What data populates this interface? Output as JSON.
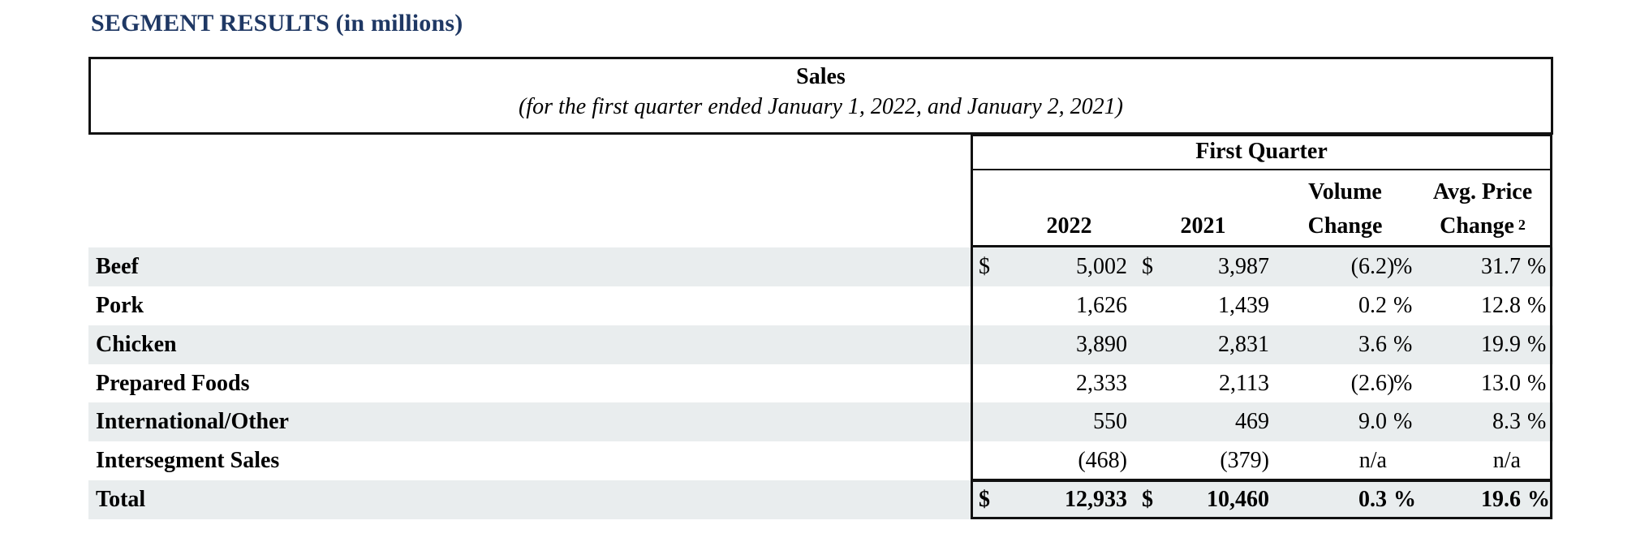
{
  "title": "SEGMENT RESULTS (in millions)",
  "colors": {
    "title_navy": "#1f3864",
    "stripe_gray": "#e9edee",
    "border_black": "#111111"
  },
  "table": {
    "header": {
      "title": "Sales",
      "subtitle": "(for the first quarter ended January 1, 2022, and January 2, 2021)",
      "group": "First Quarter",
      "col_2022": "2022",
      "col_2021": "2021",
      "vol_line1": "Volume",
      "vol_line2": "Change",
      "avg_line1": "Avg. Price",
      "avg_line2": "Change",
      "avg_footnote": "2"
    },
    "rows": [
      {
        "label": "Beef",
        "y2022": {
          "cur": "$",
          "num": "5,002"
        },
        "y2021": {
          "cur": "$",
          "num": "3,987"
        },
        "vol": {
          "num": "(6.2",
          "paren": ")",
          "unit": "%"
        },
        "avg": {
          "num": "31.7",
          "paren": "",
          "unit": "%"
        }
      },
      {
        "label": "Pork",
        "y2022": {
          "cur": "",
          "num": "1,626"
        },
        "y2021": {
          "cur": "",
          "num": "1,439"
        },
        "vol": {
          "num": "0.2",
          "paren": "",
          "unit": "%"
        },
        "avg": {
          "num": "12.8",
          "paren": "",
          "unit": "%"
        }
      },
      {
        "label": "Chicken",
        "y2022": {
          "cur": "",
          "num": "3,890"
        },
        "y2021": {
          "cur": "",
          "num": "2,831"
        },
        "vol": {
          "num": "3.6",
          "paren": "",
          "unit": "%"
        },
        "avg": {
          "num": "19.9",
          "paren": "",
          "unit": "%"
        }
      },
      {
        "label": "Prepared Foods",
        "y2022": {
          "cur": "",
          "num": "2,333"
        },
        "y2021": {
          "cur": "",
          "num": "2,113"
        },
        "vol": {
          "num": "(2.6",
          "paren": ")",
          "unit": "%"
        },
        "avg": {
          "num": "13.0",
          "paren": "",
          "unit": "%"
        }
      },
      {
        "label": "International/Other",
        "y2022": {
          "cur": "",
          "num": "550"
        },
        "y2021": {
          "cur": "",
          "num": "469"
        },
        "vol": {
          "num": "9.0",
          "paren": "",
          "unit": "%"
        },
        "avg": {
          "num": "8.3",
          "paren": "",
          "unit": "%"
        }
      },
      {
        "label": "Intersegment Sales",
        "y2022": {
          "cur": "",
          "num": "(468)"
        },
        "y2021": {
          "cur": "",
          "num": "(379)"
        },
        "vol": {
          "num": "n/a",
          "paren": "",
          "unit": ""
        },
        "avg": {
          "num": "n/a",
          "paren": "",
          "unit": ""
        }
      },
      {
        "label": "Total",
        "y2022": {
          "cur": "$",
          "num": "12,933"
        },
        "y2021": {
          "cur": "$",
          "num": "10,460"
        },
        "vol": {
          "num": "0.3",
          "paren": "",
          "unit": "%"
        },
        "avg": {
          "num": "19.6",
          "paren": "",
          "unit": "%"
        }
      }
    ]
  }
}
